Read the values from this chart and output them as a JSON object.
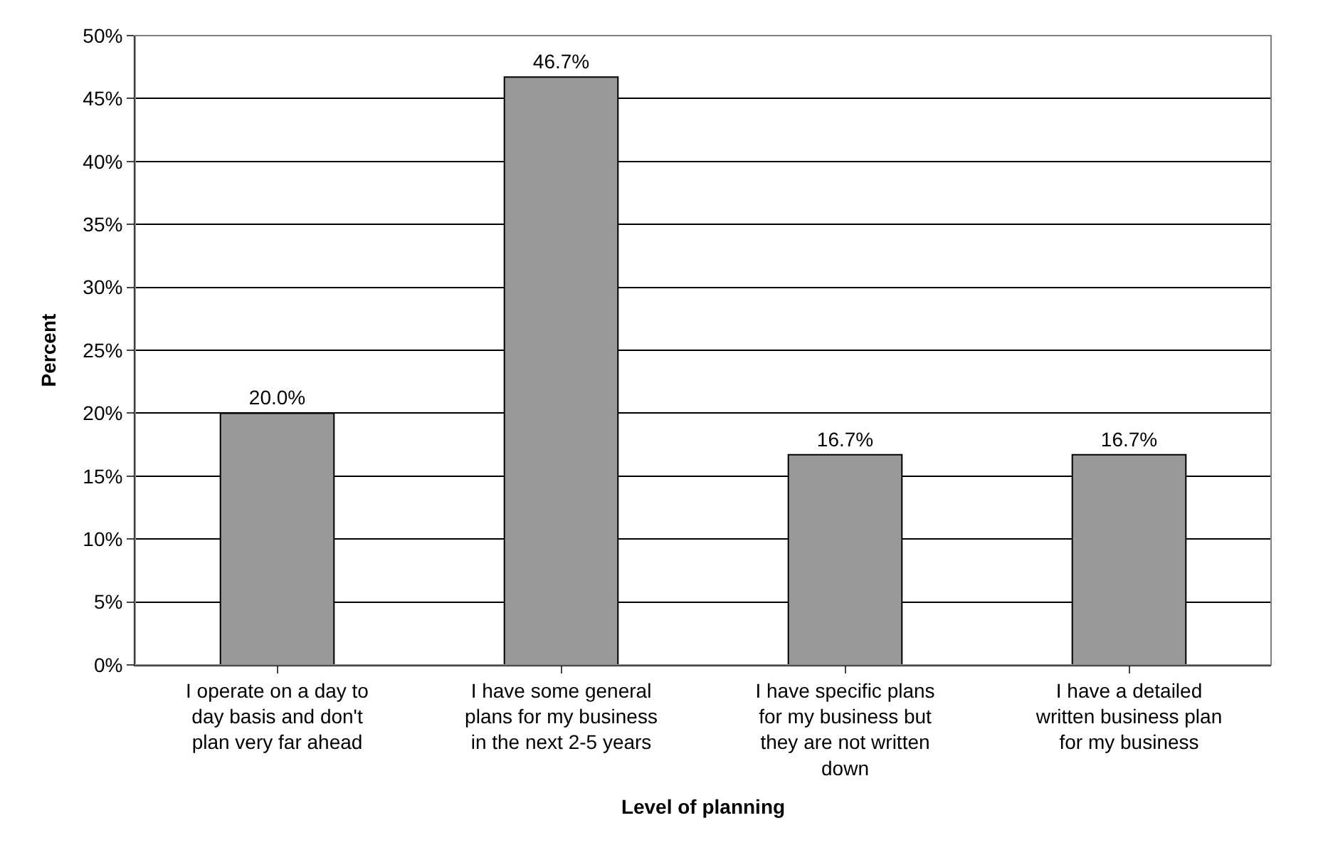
{
  "chart_data": {
    "type": "bar",
    "xlabel": "Level of planning",
    "ylabel": "Percent",
    "categories": [
      "I operate on a day to day basis and don't plan very far ahead",
      "I have some general plans for my business in the next 2-5 years",
      "I have specific plans for my business but they are not written down",
      "I have a detailed written business plan for my business"
    ],
    "values": [
      20.0,
      46.7,
      16.7,
      16.7
    ],
    "value_labels": [
      "20.0%",
      "46.7%",
      "16.7%",
      "16.7%"
    ],
    "color": "#999999",
    "ylim": [
      0,
      50
    ],
    "yticks": [
      {
        "value": 0,
        "label": "0%"
      },
      {
        "value": 5,
        "label": "5%"
      },
      {
        "value": 10,
        "label": "10%"
      },
      {
        "value": 15,
        "label": "15%"
      },
      {
        "value": 20,
        "label": "20%"
      },
      {
        "value": 25,
        "label": "25%"
      },
      {
        "value": 30,
        "label": "30%"
      },
      {
        "value": 35,
        "label": "35%"
      },
      {
        "value": 40,
        "label": "40%"
      },
      {
        "value": 45,
        "label": "45%"
      },
      {
        "value": 50,
        "label": "50%"
      }
    ],
    "grid": "y"
  }
}
